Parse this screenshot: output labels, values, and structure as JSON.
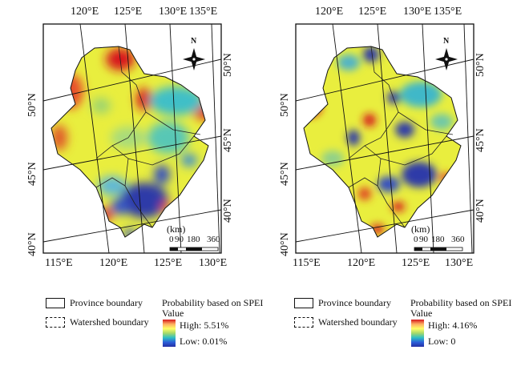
{
  "maps": [
    {
      "id": "left",
      "top_lon": [
        "120°E",
        "125°E",
        "130°E",
        "135°E"
      ],
      "bottom_lon": [
        "115°E",
        "120°E",
        "125°E",
        "130°E"
      ],
      "left_lat": [
        "50°N",
        "45°N",
        "40°N"
      ],
      "right_lat": [
        "50°N",
        "45°N",
        "40°N"
      ],
      "north": "N",
      "scale_unit": "(km)",
      "scale_ticks": [
        "0",
        "90",
        "180",
        "360"
      ]
    },
    {
      "id": "right",
      "top_lon": [
        "120°E",
        "125°E",
        "130°E",
        "135°E"
      ],
      "bottom_lon": [
        "115°E",
        "120°E",
        "125°E",
        "130°E"
      ],
      "left_lat": [
        "50°N",
        "45°N",
        "40°N"
      ],
      "right_lat": [
        "50°N",
        "45°N",
        "40°N"
      ],
      "north": "N",
      "scale_unit": "(km)",
      "scale_ticks": [
        "0",
        "90",
        "180",
        "360"
      ]
    }
  ],
  "legends": [
    {
      "province": "Province boundary",
      "watershed": "Watershed boundary",
      "title": "Probability based on SPEI",
      "subtitle": "Value",
      "high": "High: 5.51%",
      "low": "Low: 0.01%"
    },
    {
      "province": "Province boundary",
      "watershed": "Watershed boundary",
      "title": "Probability based on SPEI",
      "subtitle": "Value",
      "high": "High: 4.16%",
      "low": "Low: 0"
    }
  ],
  "colors": {
    "high": "#d7191c",
    "mid": "#ffff66",
    "low": "#262fa4",
    "land": "#eaf23a",
    "boundary": "#111111"
  }
}
